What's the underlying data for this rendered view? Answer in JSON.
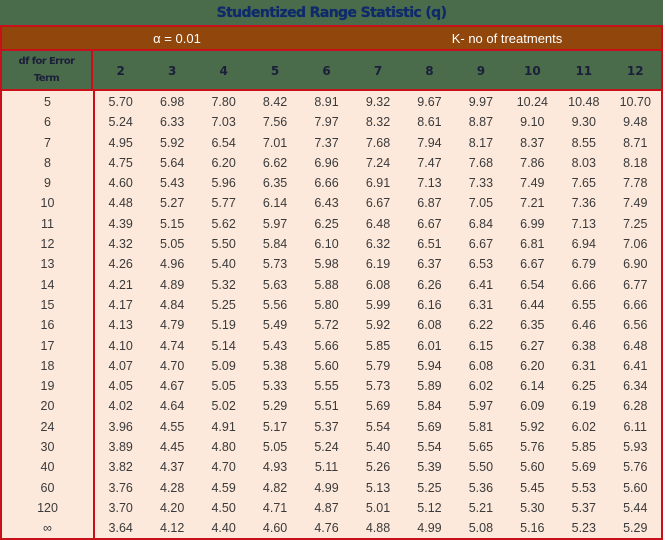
{
  "title": "Studentized Range Statistic (q)",
  "band": {
    "alpha_label": "α = 0.01",
    "k_label": "K- no of treatments"
  },
  "header": {
    "df_label_line1": "df for Error",
    "df_label_line2": "Term",
    "k_values": [
      "2",
      "3",
      "4",
      "5",
      "6",
      "7",
      "8",
      "9",
      "10",
      "11",
      "12"
    ]
  },
  "colors": {
    "title_bg": "#4b6c4b",
    "title_text": "#0e2a6b",
    "band_bg": "#91470b",
    "border": "#c8101a",
    "cell_bg": "#fce9dc"
  },
  "rows": [
    {
      "df": "5",
      "values": [
        "5.70",
        "6.98",
        "7.80",
        "8.42",
        "8.91",
        "9.32",
        "9.67",
        "9.97",
        "10.24",
        "10.48",
        "10.70"
      ]
    },
    {
      "df": "6",
      "values": [
        "5.24",
        "6.33",
        "7.03",
        "7.56",
        "7.97",
        "8.32",
        "8.61",
        "8.87",
        "9.10",
        "9.30",
        "9.48"
      ]
    },
    {
      "df": "7",
      "values": [
        "4.95",
        "5.92",
        "6.54",
        "7.01",
        "7.37",
        "7.68",
        "7.94",
        "8.17",
        "8.37",
        "8.55",
        "8.71"
      ]
    },
    {
      "df": "8",
      "values": [
        "4.75",
        "5.64",
        "6.20",
        "6.62",
        "6.96",
        "7.24",
        "7.47",
        "7.68",
        "7.86",
        "8.03",
        "8.18"
      ]
    },
    {
      "df": "9",
      "values": [
        "4.60",
        "5.43",
        "5.96",
        "6.35",
        "6.66",
        "6.91",
        "7.13",
        "7.33",
        "7.49",
        "7.65",
        "7.78"
      ]
    },
    {
      "df": "10",
      "values": [
        "4.48",
        "5.27",
        "5.77",
        "6.14",
        "6.43",
        "6.67",
        "6.87",
        "7.05",
        "7.21",
        "7.36",
        "7.49"
      ]
    },
    {
      "df": "11",
      "values": [
        "4.39",
        "5.15",
        "5.62",
        "5.97",
        "6.25",
        "6.48",
        "6.67",
        "6.84",
        "6.99",
        "7.13",
        "7.25"
      ]
    },
    {
      "df": "12",
      "values": [
        "4.32",
        "5.05",
        "5.50",
        "5.84",
        "6.10",
        "6.32",
        "6.51",
        "6.67",
        "6.81",
        "6.94",
        "7.06"
      ]
    },
    {
      "df": "13",
      "values": [
        "4.26",
        "4.96",
        "5.40",
        "5.73",
        "5.98",
        "6.19",
        "6.37",
        "6.53",
        "6.67",
        "6.79",
        "6.90"
      ]
    },
    {
      "df": "14",
      "values": [
        "4.21",
        "4.89",
        "5.32",
        "5.63",
        "5.88",
        "6.08",
        "6.26",
        "6.41",
        "6.54",
        "6.66",
        "6.77"
      ]
    },
    {
      "df": "15",
      "values": [
        "4.17",
        "4.84",
        "5.25",
        "5.56",
        "5.80",
        "5.99",
        "6.16",
        "6.31",
        "6.44",
        "6.55",
        "6.66"
      ]
    },
    {
      "df": "16",
      "values": [
        "4.13",
        "4.79",
        "5.19",
        "5.49",
        "5.72",
        "5.92",
        "6.08",
        "6.22",
        "6.35",
        "6.46",
        "6.56"
      ]
    },
    {
      "df": "17",
      "values": [
        "4.10",
        "4.74",
        "5.14",
        "5.43",
        "5.66",
        "5.85",
        "6.01",
        "6.15",
        "6.27",
        "6.38",
        "6.48"
      ]
    },
    {
      "df": "18",
      "values": [
        "4.07",
        "4.70",
        "5.09",
        "5.38",
        "5.60",
        "5.79",
        "5.94",
        "6.08",
        "6.20",
        "6.31",
        "6.41"
      ]
    },
    {
      "df": "19",
      "values": [
        "4.05",
        "4.67",
        "5.05",
        "5.33",
        "5.55",
        "5.73",
        "5.89",
        "6.02",
        "6.14",
        "6.25",
        "6.34"
      ]
    },
    {
      "df": "20",
      "values": [
        "4.02",
        "4.64",
        "5.02",
        "5.29",
        "5.51",
        "5.69",
        "5.84",
        "5.97",
        "6.09",
        "6.19",
        "6.28"
      ]
    },
    {
      "df": "24",
      "values": [
        "3.96",
        "4.55",
        "4.91",
        "5.17",
        "5.37",
        "5.54",
        "5.69",
        "5.81",
        "5.92",
        "6.02",
        "6.11"
      ]
    },
    {
      "df": "30",
      "values": [
        "3.89",
        "4.45",
        "4.80",
        "5.05",
        "5.24",
        "5.40",
        "5.54",
        "5.65",
        "5.76",
        "5.85",
        "5.93"
      ]
    },
    {
      "df": "40",
      "values": [
        "3.82",
        "4.37",
        "4.70",
        "4.93",
        "5.11",
        "5.26",
        "5.39",
        "5.50",
        "5.60",
        "5.69",
        "5.76"
      ]
    },
    {
      "df": "60",
      "values": [
        "3.76",
        "4.28",
        "4.59",
        "4.82",
        "4.99",
        "5.13",
        "5.25",
        "5.36",
        "5.45",
        "5.53",
        "5.60"
      ]
    },
    {
      "df": "120",
      "values": [
        "3.70",
        "4.20",
        "4.50",
        "4.71",
        "4.87",
        "5.01",
        "5.12",
        "5.21",
        "5.30",
        "5.37",
        "5.44"
      ]
    },
    {
      "df": "∞",
      "values": [
        "3.64",
        "4.12",
        "4.40",
        "4.60",
        "4.76",
        "4.88",
        "4.99",
        "5.08",
        "5.16",
        "5.23",
        "5.29"
      ]
    }
  ]
}
